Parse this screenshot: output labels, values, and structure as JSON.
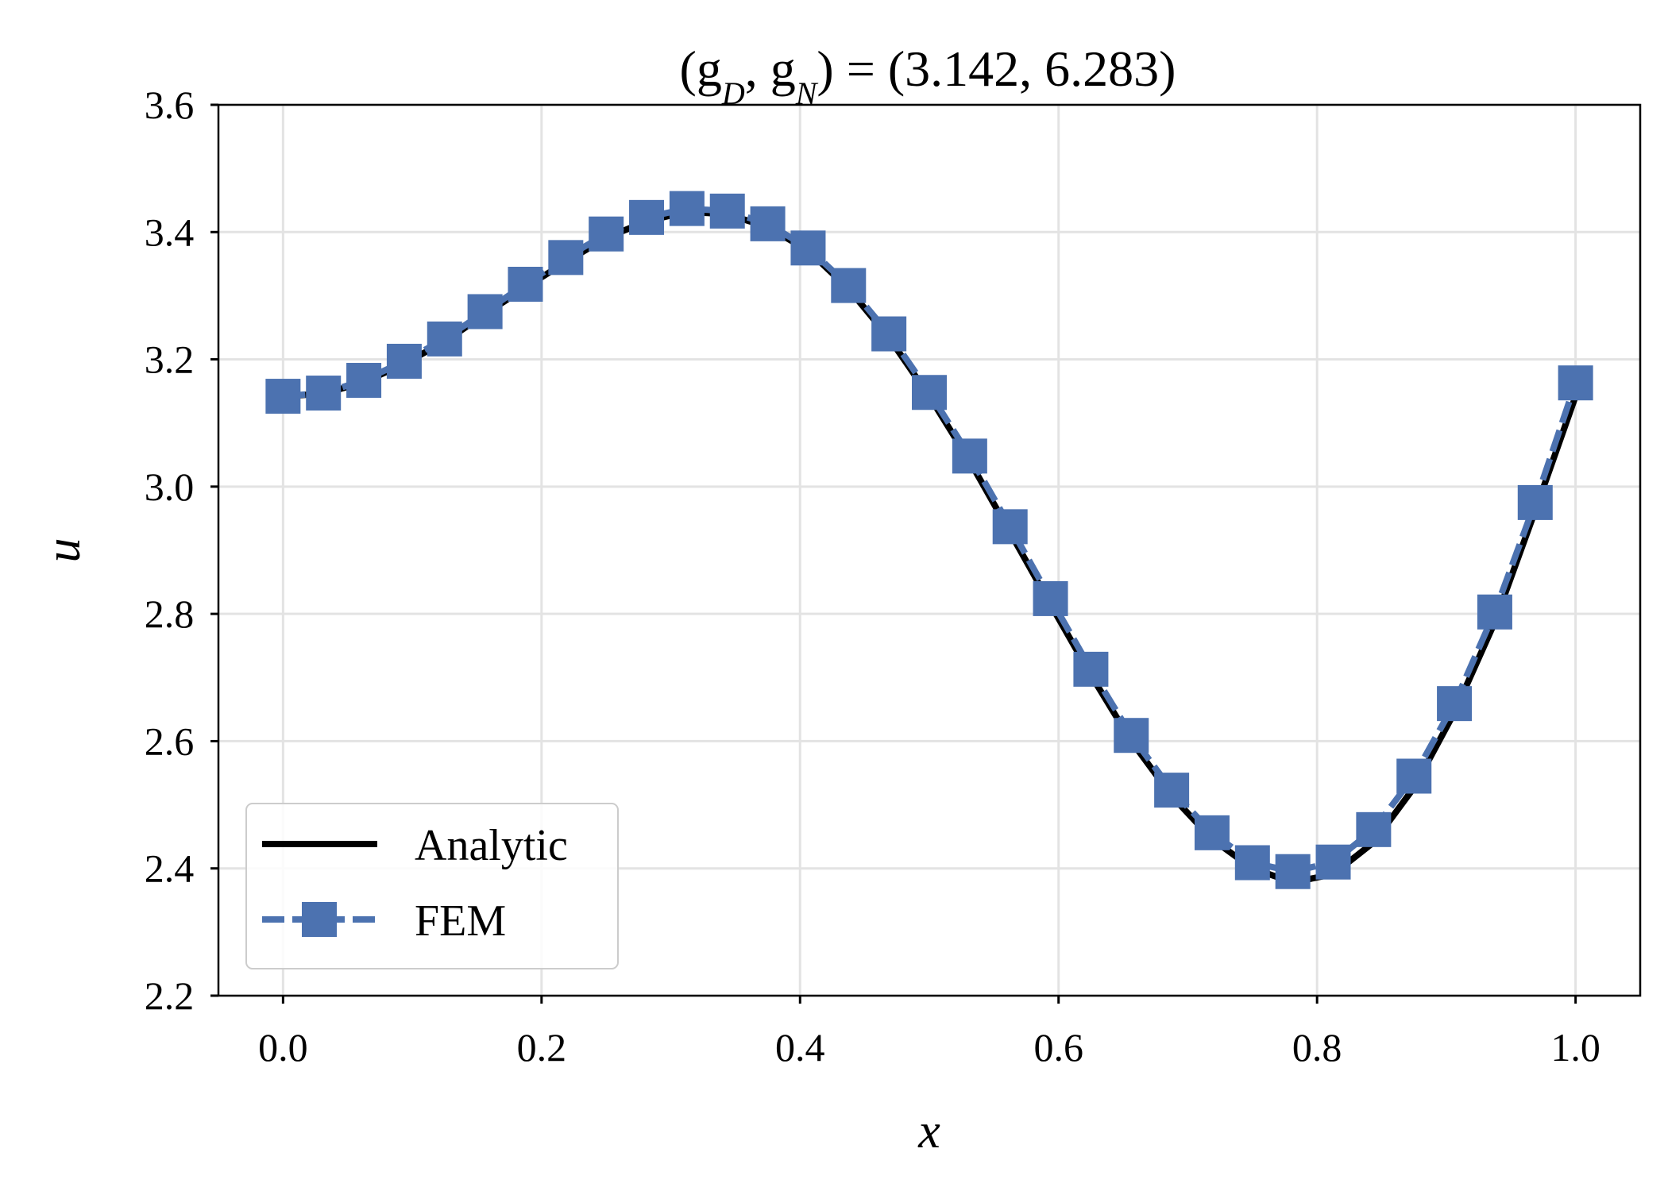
{
  "chart_data": {
    "type": "line",
    "title_parts": [
      "(g",
      "D",
      ", g",
      "N",
      ") = (3.142, 6.283)"
    ],
    "title": "(gD, gN) = (3.142, 6.283)",
    "xlabel": "x",
    "ylabel": "u",
    "xlim": [
      -0.05,
      1.05
    ],
    "ylim": [
      2.2,
      3.6
    ],
    "xticks": [
      0.0,
      0.2,
      0.4,
      0.6,
      0.8,
      1.0
    ],
    "xtick_labels": [
      "0.0",
      "0.2",
      "0.4",
      "0.6",
      "0.8",
      "1.0"
    ],
    "yticks": [
      2.2,
      2.4,
      2.6,
      2.8,
      3.0,
      3.2,
      3.4,
      3.6
    ],
    "ytick_labels": [
      "2.2",
      "2.4",
      "2.6",
      "2.8",
      "3.0",
      "3.2",
      "3.4",
      "3.6"
    ],
    "grid": true,
    "legend_position": "lower-left",
    "series": [
      {
        "name": "Analytic",
        "style": "solid",
        "color": "#000000",
        "x": [
          0.0,
          0.03125,
          0.0625,
          0.09375,
          0.125,
          0.15625,
          0.1875,
          0.21875,
          0.25,
          0.28125,
          0.3125,
          0.34375,
          0.375,
          0.40625,
          0.4375,
          0.46875,
          0.5,
          0.53125,
          0.5625,
          0.59375,
          0.625,
          0.65625,
          0.6875,
          0.71875,
          0.75,
          0.78125,
          0.8125,
          0.84375,
          0.875,
          0.90625,
          0.9375,
          0.96875,
          1.0
        ],
        "y": [
          3.142,
          3.146,
          3.164,
          3.193,
          3.228,
          3.271,
          3.313,
          3.353,
          3.391,
          3.417,
          3.432,
          3.428,
          3.408,
          3.371,
          3.311,
          3.234,
          3.142,
          3.04,
          2.928,
          2.815,
          2.704,
          2.6,
          2.514,
          2.446,
          2.4,
          2.378,
          2.391,
          2.441,
          2.527,
          2.645,
          2.787,
          2.962,
          3.142
        ]
      },
      {
        "name": "FEM",
        "style": "dashed",
        "marker": "square",
        "color": "#4c72b0",
        "x": [
          0.0,
          0.03125,
          0.0625,
          0.09375,
          0.125,
          0.15625,
          0.1875,
          0.21875,
          0.25,
          0.28125,
          0.3125,
          0.34375,
          0.375,
          0.40625,
          0.4375,
          0.46875,
          0.5,
          0.53125,
          0.5625,
          0.59375,
          0.625,
          0.65625,
          0.6875,
          0.71875,
          0.75,
          0.78125,
          0.8125,
          0.84375,
          0.875,
          0.90625,
          0.9375,
          0.96875,
          1.0
        ],
        "y": [
          3.142,
          3.147,
          3.167,
          3.197,
          3.232,
          3.275,
          3.318,
          3.36,
          3.397,
          3.423,
          3.437,
          3.433,
          3.413,
          3.375,
          3.316,
          3.24,
          3.148,
          3.048,
          2.937,
          2.824,
          2.713,
          2.609,
          2.523,
          2.456,
          2.409,
          2.395,
          2.41,
          2.461,
          2.545,
          2.659,
          2.803,
          2.975,
          3.163
        ]
      }
    ]
  },
  "colors": {
    "analytic": "#000000",
    "fem": "#4c72b0",
    "grid": "#e3e3e3"
  }
}
